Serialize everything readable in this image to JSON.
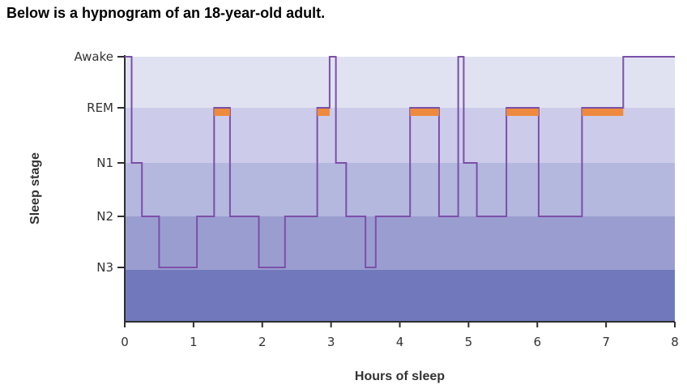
{
  "heading": "Below is a hypnogram of an 18-year-old adult.",
  "chart_data": {
    "type": "line",
    "subtype": "step",
    "title": "",
    "xlabel": "Hours of sleep",
    "ylabel": "Sleep stage",
    "xlim": [
      0,
      8
    ],
    "x_ticks": [
      "0",
      "1",
      "2",
      "3",
      "4",
      "5",
      "6",
      "7",
      "8"
    ],
    "stages": [
      "Awake",
      "REM",
      "N1",
      "N2",
      "N3"
    ],
    "grid": false,
    "legend": "none",
    "series": [
      {
        "x": [
          0,
          0.1,
          0.1,
          0.25,
          0.25,
          0.5,
          0.5,
          1.05,
          1.05,
          1.3,
          1.3,
          1.53,
          1.53,
          1.95,
          1.95,
          2.33,
          2.33,
          2.8,
          2.8,
          2.98,
          2.98,
          3.07,
          3.07,
          3.22,
          3.22,
          3.5,
          3.5,
          3.65,
          3.65,
          4.15,
          4.15,
          4.57,
          4.57,
          4.85,
          4.85,
          4.93,
          4.93,
          5.12,
          5.12,
          5.55,
          5.55,
          6.02,
          6.02,
          6.65,
          6.65,
          7.25,
          7.25,
          8.0
        ],
        "stage": [
          "Awake",
          "Awake",
          "N1",
          "N1",
          "N2",
          "N2",
          "N3",
          "N3",
          "N2",
          "N2",
          "REM",
          "REM",
          "N2",
          "N2",
          "N3",
          "N3",
          "N2",
          "N2",
          "REM",
          "REM",
          "Awake",
          "Awake",
          "N1",
          "N1",
          "N2",
          "N2",
          "N3",
          "N3",
          "N2",
          "N2",
          "REM",
          "REM",
          "N2",
          "N2",
          "Awake",
          "Awake",
          "N1",
          "N1",
          "N2",
          "N2",
          "REM",
          "REM",
          "N2",
          "N2",
          "REM",
          "REM",
          "Awake",
          "Awake"
        ]
      }
    ],
    "rem_periods": [
      [
        1.3,
        1.53
      ],
      [
        2.8,
        2.98
      ],
      [
        4.15,
        4.57
      ],
      [
        5.55,
        6.02
      ],
      [
        6.65,
        7.25
      ]
    ],
    "colors": {
      "band_awake": "#e0e2f1",
      "band_rem": "#ccccea",
      "band_n1": "#b4b7de",
      "band_n2": "#9a9dd0",
      "band_n3": "#7179bc",
      "line": "#7b50a8",
      "rem_marker": "#ee8a3d",
      "axis": "#2e2e2e"
    }
  }
}
